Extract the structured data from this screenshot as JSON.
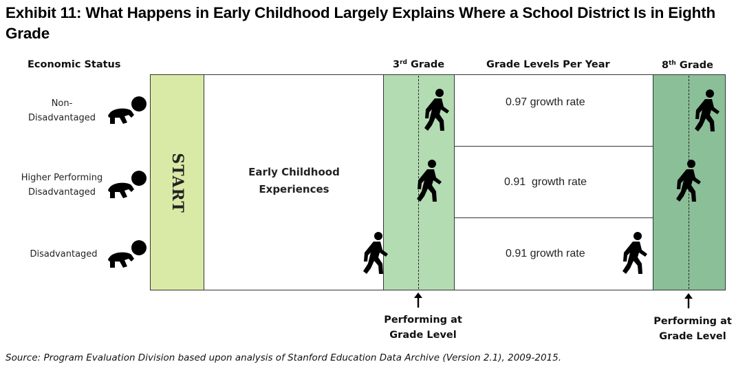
{
  "title": "Exhibit 11: What Happens in Early Childhood Largely Explains Where a School District Is in Eighth Grade",
  "headers": {
    "economic_status": "Economic Status",
    "grade3_base": "3",
    "grade3_sup": "rd",
    "grade3_rest": " Grade",
    "growth_header": "Grade Levels Per Year",
    "grade8_base": "8",
    "grade8_sup": "th",
    "grade8_rest": " Grade"
  },
  "groups": [
    {
      "line1": "Non-",
      "line2": "Disadvantaged"
    },
    {
      "line1": "Higher Performing",
      "line2": "Disadvantaged"
    },
    {
      "line1": "Disadvantaged",
      "line2": ""
    }
  ],
  "start_label": "START",
  "early_childhood": {
    "line1": "Early Childhood",
    "line2": "Experiences"
  },
  "growth_rates": [
    "0.97 growth rate",
    "0.91  growth rate",
    "0.91 growth rate"
  ],
  "performing": {
    "g3": {
      "line1": "Performing at",
      "line2": "Grade Level"
    },
    "g8": {
      "line1": "Performing at",
      "line2": "Grade Level"
    }
  },
  "source": "Source: Program Evaluation Division based upon analysis of Stanford Education Data Archive (Version 2.1), 2009-2015.",
  "colors": {
    "start": "#d9eaa6",
    "grade3": "#b3dcb2",
    "grade8": "#8bbf98"
  },
  "icons": [
    "crawling-baby-icon",
    "walking-person-icon",
    "arrow-up-icon"
  ]
}
